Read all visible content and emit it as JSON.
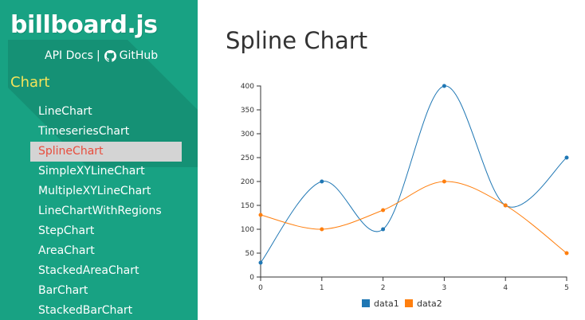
{
  "sidebar": {
    "logo": "billboard.js",
    "api_docs": "API Docs",
    "separator": "|",
    "github": "GitHub",
    "section_title": "Chart",
    "items": [
      {
        "label": "LineChart"
      },
      {
        "label": "TimeseriesChart"
      },
      {
        "label": "SplineChart"
      },
      {
        "label": "SimpleXYLineChart"
      },
      {
        "label": "MultipleXYLineChart"
      },
      {
        "label": "LineChartWithRegions"
      },
      {
        "label": "StepChart"
      },
      {
        "label": "AreaChart"
      },
      {
        "label": "StackedAreaChart"
      },
      {
        "label": "BarChart"
      },
      {
        "label": "StackedBarChart"
      }
    ],
    "active_index": 2
  },
  "main": {
    "title": "Spline Chart"
  },
  "colors": {
    "sidebar_bg": "#18a283",
    "active_text": "#e84d3d",
    "section_title": "#f3e35a",
    "data1": "#1f77b4",
    "data2": "#ff7f0e"
  },
  "chart_data": {
    "type": "line",
    "interpolation": "spline",
    "x": [
      0,
      1,
      2,
      3,
      4,
      5
    ],
    "series": [
      {
        "name": "data1",
        "values": [
          30,
          200,
          100,
          400,
          150,
          250
        ],
        "color": "#1f77b4"
      },
      {
        "name": "data2",
        "values": [
          130,
          100,
          140,
          200,
          150,
          50
        ],
        "color": "#ff7f0e"
      }
    ],
    "xlim": [
      0,
      5
    ],
    "ylim": [
      0,
      400
    ],
    "yticks": [
      0,
      50,
      100,
      150,
      200,
      250,
      300,
      350,
      400
    ],
    "xticks": [
      0,
      1,
      2,
      3,
      4,
      5
    ],
    "grid": false,
    "legend_position": "bottom"
  }
}
